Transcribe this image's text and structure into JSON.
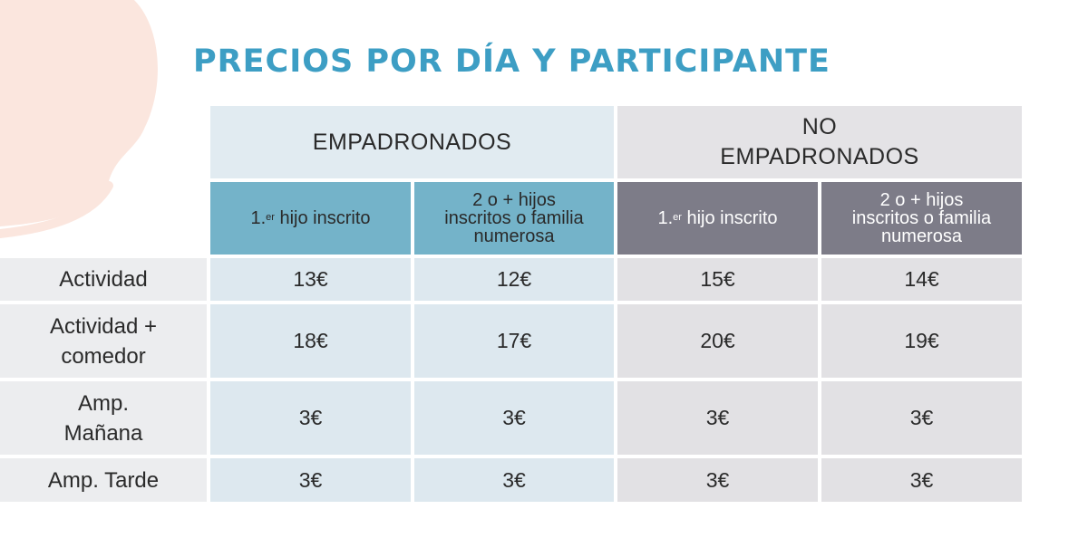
{
  "title": "PRECIOS POR DÍA Y PARTICIPANTE",
  "groups": {
    "empadronados": "EMPADRONADOS",
    "no_line1": "NO",
    "no_line2": "EMPADRONADOS"
  },
  "subheaders": {
    "first_child_prefix": "1.",
    "first_child_sup": "er",
    "first_child_rest": " hijo inscrito",
    "multi_line1": "2 o + hijos",
    "multi_line2": "inscritos o familia",
    "multi_line3": "numerosa"
  },
  "rows": [
    {
      "label_line1": "Actividad",
      "label_line2": "",
      "values": [
        "13€",
        "12€",
        "15€",
        "14€"
      ]
    },
    {
      "label_line1": "Actividad +",
      "label_line2": "comedor",
      "values": [
        "18€",
        "17€",
        "20€",
        "19€"
      ]
    },
    {
      "label_line1": "Amp.",
      "label_line2": "Mañana",
      "values": [
        "3€",
        "3€",
        "3€",
        "3€"
      ]
    },
    {
      "label_line1": "Amp. Tarde",
      "label_line2": "",
      "values": [
        "3€",
        "3€",
        "3€",
        "3€"
      ]
    }
  ],
  "colors": {
    "title": "#3d9ec4",
    "empadronados_header": "#e1ebf1",
    "empadronados_subheader": "#74b3c9",
    "no_empadronados_header": "#e4e3e6",
    "no_empadronados_subheader": "#7d7c88",
    "decorative_blob": "#fbe6de"
  }
}
